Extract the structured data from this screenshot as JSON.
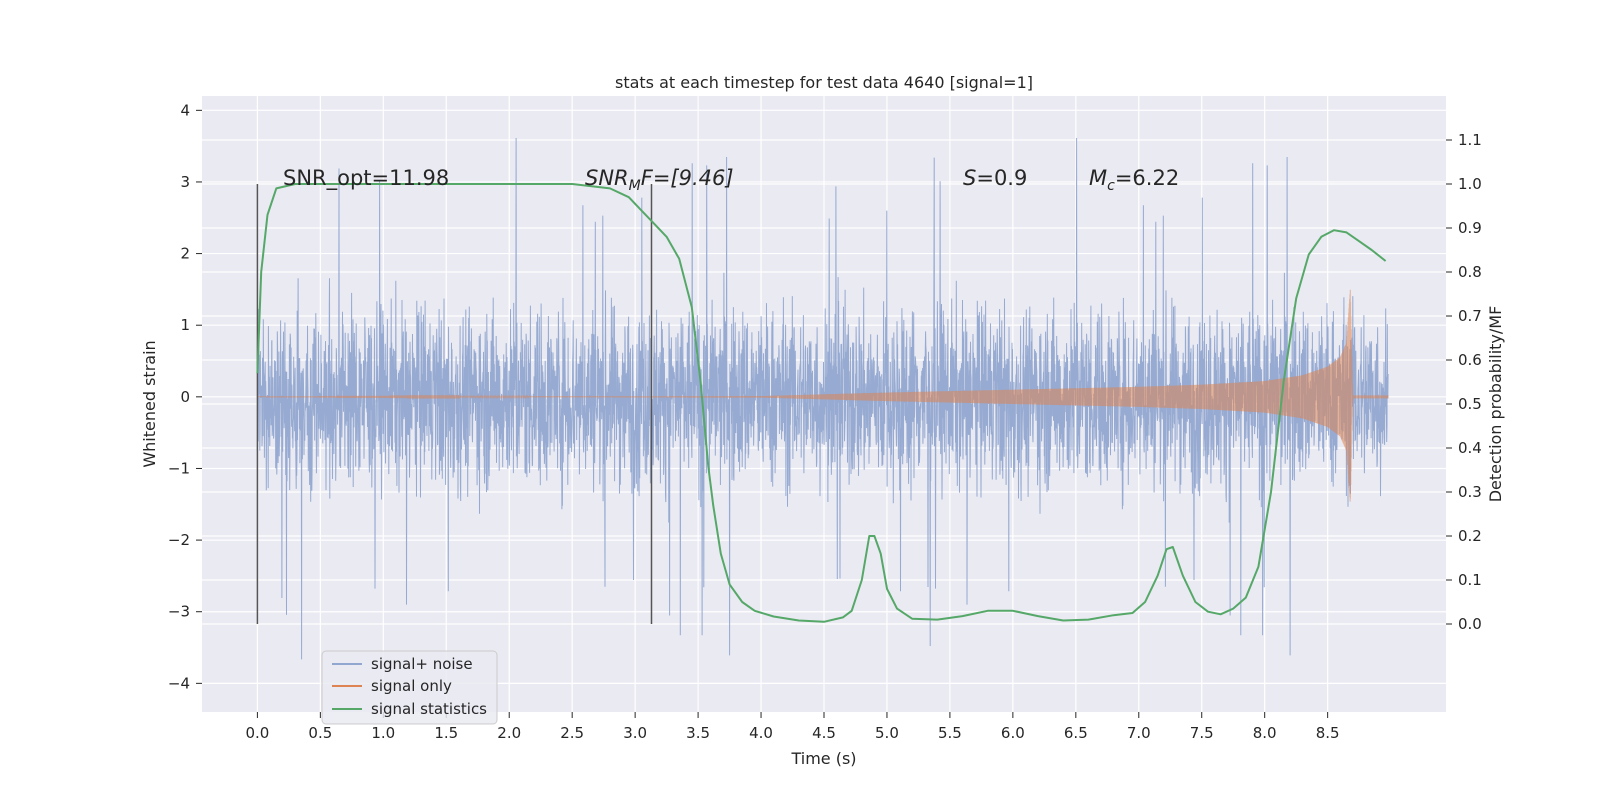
{
  "chart_data": {
    "type": "line",
    "title": "stats at each timestep for test data 4640 [signal=1]",
    "xlabel": "Time (s)",
    "ylabel_left": "Whitened strain",
    "ylabel_right": "Detection probability/MF",
    "xlim": [
      -0.44,
      9.44
    ],
    "ylim_left": [
      -4.4,
      4.2
    ],
    "ylim_right": [
      -0.2,
      1.2
    ],
    "xticks": [
      "0.0",
      "0.5",
      "1.0",
      "1.5",
      "2.0",
      "2.5",
      "3.0",
      "3.5",
      "4.0",
      "4.5",
      "5.0",
      "5.5",
      "6.0",
      "6.5",
      "7.0",
      "7.5",
      "8.0",
      "8.5"
    ],
    "yticks_left": [
      "4",
      "3",
      "2",
      "1",
      "0",
      "−1",
      "−2",
      "−3",
      "−4"
    ],
    "yticks_right": [
      "1.1",
      "1.0",
      "0.9",
      "0.8",
      "0.7",
      "0.6",
      "0.5",
      "0.4",
      "0.3",
      "0.2",
      "0.1",
      "0.0"
    ],
    "grid": true,
    "legend_position": "lower-left",
    "annotations": {
      "snr_opt": "SNR_opt=11.98",
      "snr_mf_prefix": "SNR",
      "snr_mf_sub": "M",
      "snr_mf_suffix": "F=[9.46]",
      "s_italic": "S",
      "s_value": "=0.9",
      "mc_italic": "M",
      "mc_sub": "c",
      "mc_value": "=6.22"
    },
    "vertical_markers_x": [
      0.0,
      3.13
    ],
    "series": [
      {
        "name": "signal+ noise",
        "color": "#91a7d0",
        "axis": "left",
        "x_range": [
          0.0,
          8.98
        ],
        "envelope": {
          "typical_upper": 1.6,
          "typical_lower": -1.6,
          "peak_upper": 3.7,
          "peak_lower": -4.0
        }
      },
      {
        "name": "signal only",
        "color": "#dd8452",
        "axis": "left",
        "x": [
          0.0,
          4.0,
          5.0,
          6.0,
          7.0,
          7.5,
          8.0,
          8.3,
          8.5,
          8.6,
          8.65,
          8.68,
          8.7,
          8.98
        ],
        "amplitude": [
          0.0,
          0.01,
          0.06,
          0.1,
          0.14,
          0.17,
          0.22,
          0.3,
          0.42,
          0.55,
          0.75,
          1.5,
          0.02,
          0.02
        ]
      },
      {
        "name": "signal statistics",
        "color": "#55a868",
        "axis": "right",
        "x": [
          0.0,
          0.03,
          0.08,
          0.15,
          0.3,
          0.6,
          1.0,
          1.5,
          2.0,
          2.5,
          2.8,
          2.95,
          3.05,
          3.15,
          3.25,
          3.35,
          3.45,
          3.52,
          3.58,
          3.62,
          3.68,
          3.75,
          3.85,
          3.95,
          4.1,
          4.3,
          4.5,
          4.65,
          4.72,
          4.8,
          4.86,
          4.9,
          4.95,
          5.0,
          5.08,
          5.2,
          5.4,
          5.6,
          5.8,
          6.0,
          6.2,
          6.4,
          6.6,
          6.8,
          6.95,
          7.05,
          7.15,
          7.22,
          7.27,
          7.35,
          7.45,
          7.55,
          7.65,
          7.75,
          7.85,
          7.95,
          8.05,
          8.15,
          8.25,
          8.35,
          8.45,
          8.55,
          8.65,
          8.75,
          8.85,
          8.96
        ],
        "y": [
          0.57,
          0.8,
          0.93,
          0.99,
          1.0,
          1.0,
          1.0,
          1.0,
          1.0,
          1.0,
          0.99,
          0.97,
          0.94,
          0.91,
          0.88,
          0.83,
          0.72,
          0.55,
          0.36,
          0.27,
          0.16,
          0.09,
          0.05,
          0.03,
          0.017,
          0.008,
          0.005,
          0.015,
          0.03,
          0.1,
          0.2,
          0.2,
          0.16,
          0.08,
          0.035,
          0.012,
          0.01,
          0.018,
          0.03,
          0.03,
          0.018,
          0.008,
          0.01,
          0.02,
          0.025,
          0.05,
          0.11,
          0.17,
          0.175,
          0.11,
          0.05,
          0.028,
          0.022,
          0.035,
          0.06,
          0.13,
          0.3,
          0.55,
          0.74,
          0.84,
          0.88,
          0.895,
          0.89,
          0.87,
          0.85,
          0.825
        ]
      }
    ]
  }
}
